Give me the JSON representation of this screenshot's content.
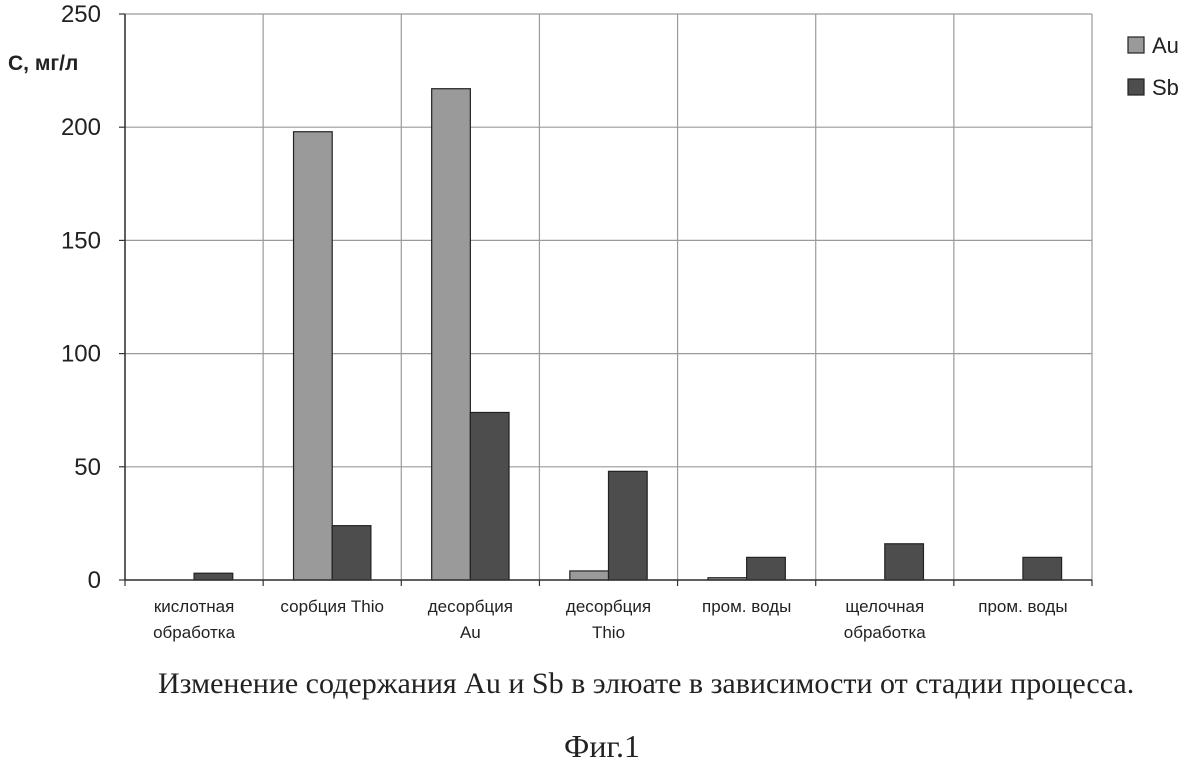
{
  "chart_data": {
    "type": "bar",
    "ylabel": "С, мг/л",
    "xlabel": "",
    "ylim": [
      0,
      250
    ],
    "yticks": [
      "0",
      "50",
      "100",
      "150",
      "200",
      "250"
    ],
    "grid": true,
    "legend_position": "top-right",
    "categories": [
      [
        "кислотная",
        "обработка"
      ],
      [
        "сорбция Thio"
      ],
      [
        "десорбция",
        "Au"
      ],
      [
        "десорбция",
        "Thio"
      ],
      [
        "пром. воды"
      ],
      [
        "щелочная",
        "обработка"
      ],
      [
        "пром. воды"
      ]
    ],
    "series": [
      {
        "name": "Au",
        "color": "#9a9a9a",
        "values": [
          0,
          198,
          217,
          4,
          1,
          0,
          0
        ]
      },
      {
        "name": "Sb",
        "color": "#4d4d4d",
        "values": [
          3,
          24,
          74,
          48,
          10,
          16,
          10
        ]
      }
    ]
  },
  "caption": "Изменение содержания Au и Sb в элюате в зависимости от стадии процесса.",
  "figure_label": "Фиг.1"
}
